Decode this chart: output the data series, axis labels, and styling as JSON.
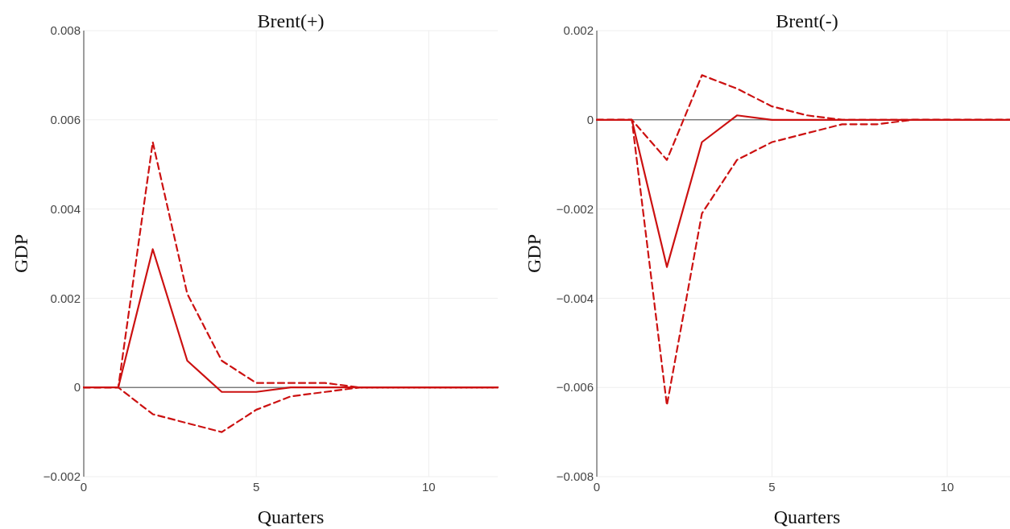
{
  "chart_data": [
    {
      "type": "line",
      "title": "Brent(+)",
      "xlabel": "Quarters",
      "ylabel": "GDP",
      "x": [
        0,
        1,
        2,
        3,
        4,
        5,
        6,
        7,
        8,
        9,
        10,
        11,
        12
      ],
      "xlim": [
        0,
        12
      ],
      "xticks": [
        0,
        5,
        10
      ],
      "ylim": [
        -0.002,
        0.008
      ],
      "yticks": [
        {
          "value": -0.002,
          "label": "−0.002"
        },
        0,
        0.002,
        0.004,
        0.006,
        0.008
      ],
      "grid": true,
      "ref_lines": [
        {
          "axis": "y",
          "value": 0,
          "color": "#444444"
        }
      ],
      "series": [
        {
          "color": "#cc1111",
          "line_style": "solid",
          "values": [
            0,
            0,
            0.0031,
            0.0006,
            -0.0001,
            -0.0001,
            0,
            0,
            0,
            0,
            0,
            0,
            0
          ]
        },
        {
          "color": "#cc1111",
          "line_style": "dashed",
          "values": [
            0,
            0,
            0.0055,
            0.0021,
            0.0006,
            0.0001,
            0.0001,
            0.0001,
            0,
            0,
            0,
            0,
            0
          ]
        },
        {
          "color": "#cc1111",
          "line_style": "dashed",
          "values": [
            0,
            0,
            -0.0006,
            -0.0008,
            -0.001,
            -0.0005,
            -0.0002,
            -0.0001,
            0,
            0,
            0,
            0,
            0
          ]
        }
      ]
    },
    {
      "type": "line",
      "title": "Brent(-)",
      "xlabel": "Quarters",
      "ylabel": "GDP",
      "x": [
        0,
        1,
        2,
        3,
        4,
        5,
        6,
        7,
        8,
        9,
        10,
        11,
        12
      ],
      "xlim": [
        0,
        12
      ],
      "xticks": [
        0,
        5,
        10
      ],
      "ylim": [
        -0.008,
        0.002
      ],
      "yticks": [
        {
          "value": -0.008,
          "label": "−0.008"
        },
        {
          "value": -0.006,
          "label": "−0.006"
        },
        {
          "value": -0.004,
          "label": "−0.004"
        },
        {
          "value": -0.002,
          "label": "−0.002"
        },
        0,
        0.002
      ],
      "grid": true,
      "ref_lines": [
        {
          "axis": "y",
          "value": 0,
          "color": "#444444"
        }
      ],
      "series": [
        {
          "color": "#cc1111",
          "line_style": "solid",
          "values": [
            0,
            0,
            -0.0033,
            -0.0005,
            0.0001,
            0,
            0,
            0,
            0,
            0,
            0,
            0,
            0
          ]
        },
        {
          "color": "#cc1111",
          "line_style": "dashed",
          "values": [
            0,
            0,
            -0.0009,
            0.001,
            0.0007,
            0.0003,
            0.0001,
            0,
            0,
            0,
            0,
            0,
            0
          ]
        },
        {
          "color": "#cc1111",
          "line_style": "dashed",
          "values": [
            0,
            0,
            -0.0064,
            -0.0021,
            -0.0009,
            -0.0005,
            -0.0003,
            -0.0001,
            -0.0001,
            0,
            0,
            0,
            0
          ]
        }
      ]
    }
  ]
}
